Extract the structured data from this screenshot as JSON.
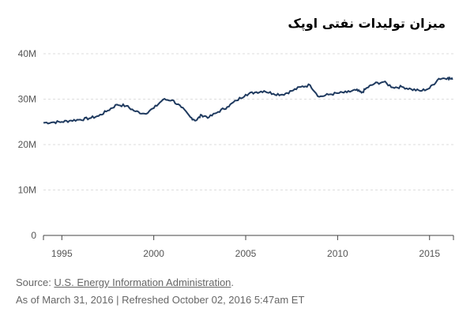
{
  "title": "میزان تولیدات نفتی اوپک",
  "source": {
    "prefix": "Source: ",
    "link_text": "U.S. Energy Information Administration",
    "suffix": "."
  },
  "as_of": "As of March 31, 2016 | Refreshed October 02, 2016 5:47am ET",
  "colors": {
    "line": "#1f3a5f",
    "grid": "#dddddd",
    "axis": "#444444"
  },
  "chart_data": {
    "type": "line",
    "title": "میزان تولیدات نفتی اوپک",
    "xlabel": "",
    "ylabel": "",
    "xlim": [
      1994.0,
      2016.3
    ],
    "ylim": [
      0,
      40000000
    ],
    "y_ticks": [
      {
        "value": 0,
        "label": "0"
      },
      {
        "value": 10000000,
        "label": "10M"
      },
      {
        "value": 20000000,
        "label": "20M"
      },
      {
        "value": 30000000,
        "label": "30M"
      },
      {
        "value": 40000000,
        "label": "40M"
      }
    ],
    "x_ticks": [
      {
        "value": 1995,
        "label": "1995"
      },
      {
        "value": 2000,
        "label": "2000"
      },
      {
        "value": 2005,
        "label": "2005"
      },
      {
        "value": 2010,
        "label": "2010"
      },
      {
        "value": 2015,
        "label": "2015"
      }
    ],
    "grid": true,
    "series": [
      {
        "x": [
          1994.0,
          1994.5,
          1995.0,
          1995.5,
          1996.0,
          1996.5,
          1997.0,
          1997.5,
          1998.0,
          1998.5,
          1999.0,
          1999.5,
          2000.0,
          2000.5,
          2001.0,
          2001.5,
          2002.0,
          2002.3,
          2002.6,
          2003.0,
          2003.5,
          2004.0,
          2004.5,
          2005.0,
          2005.5,
          2006.0,
          2006.5,
          2007.0,
          2007.5,
          2008.0,
          2008.5,
          2009.0,
          2009.5,
          2010.0,
          2010.5,
          2011.0,
          2011.3,
          2011.6,
          2012.0,
          2012.5,
          2013.0,
          2013.5,
          2014.0,
          2014.5,
          2015.0,
          2015.5,
          2016.0,
          2016.25
        ],
        "y": [
          24800000,
          24900000,
          25000000,
          25300000,
          25500000,
          25800000,
          26300000,
          27500000,
          28800000,
          28500000,
          27300000,
          26800000,
          28000000,
          29900000,
          29800000,
          28200000,
          26000000,
          25300000,
          26500000,
          26000000,
          27200000,
          28300000,
          29700000,
          31000000,
          31500000,
          31800000,
          31200000,
          31000000,
          31800000,
          32700000,
          33100000,
          30500000,
          31000000,
          31300000,
          31500000,
          32000000,
          31400000,
          32500000,
          33400000,
          33800000,
          32600000,
          32700000,
          32200000,
          31800000,
          32400000,
          34500000,
          34700000,
          34300000
        ]
      }
    ]
  }
}
